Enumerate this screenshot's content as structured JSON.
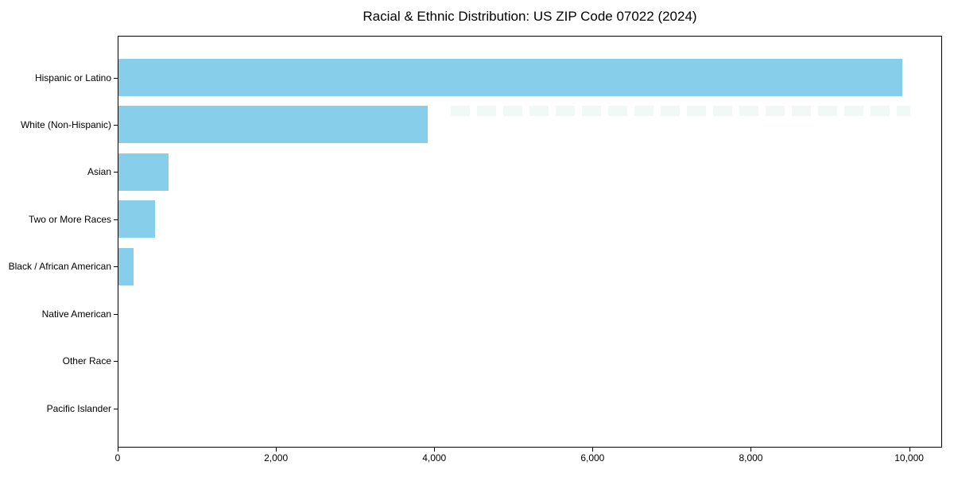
{
  "chart_data": {
    "type": "bar",
    "orientation": "horizontal",
    "title": "Racial & Ethnic Distribution: US ZIP Code 07022 (2024)",
    "categories": [
      "Hispanic or Latino",
      "White (Non-Hispanic)",
      "Asian",
      "Two or More Races",
      "Black / African American",
      "Native American",
      "Other Race",
      "Pacific Islander"
    ],
    "values": [
      9920,
      3910,
      630,
      460,
      190,
      0,
      0,
      0
    ],
    "xlabel": "",
    "ylabel": "",
    "xlim": [
      0,
      10416
    ],
    "x_tick_values": [
      0,
      2000,
      4000,
      6000,
      8000,
      10000
    ],
    "x_tick_labels": [
      "0",
      "2,000",
      "4,000",
      "6,000",
      "8,000",
      "10,000"
    ],
    "bar_color": "#87CEEB",
    "axis_color": "#000000",
    "background_color": "#ffffff",
    "grid": false,
    "legend": "none"
  }
}
